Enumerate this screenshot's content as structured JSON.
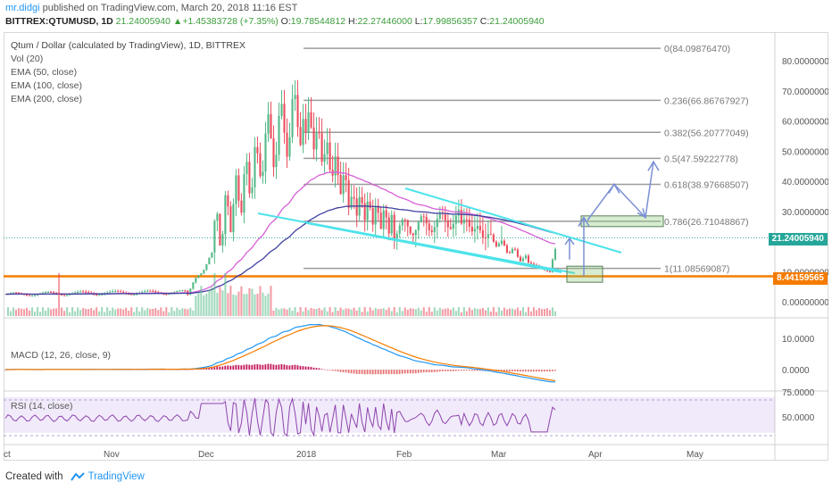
{
  "header": {
    "author": "mr.didgi",
    "published_text": "published on TradingView.com, March 20, 2018 11:16 EST",
    "symbol": "BITTREX:QTUMUSD, 1D",
    "last": "21.24005940",
    "change": "+1.45383728 (+7.35%)",
    "open_label": "O:",
    "open": "19.78544812",
    "high_label": "H:",
    "high": "22.27446000",
    "low_label": "L:",
    "low": "17.99856357",
    "close_label": "C:",
    "close": "21.24005940",
    "up_arrow": "▲"
  },
  "legend": {
    "title": "Qtum / Dollar (calculated by TradingView), 1D, BITTREX",
    "items": [
      "Vol (20)",
      "EMA (50, close)",
      "EMA (100, close)",
      "EMA (200, close)"
    ]
  },
  "fib_levels": [
    {
      "label": "0(84.09876470)",
      "value": 84.0987647
    },
    {
      "label": "0.236(66.86767927)",
      "value": 66.86767927
    },
    {
      "label": "0.382(56.20777049)",
      "value": 56.20777049
    },
    {
      "label": "0.5(47.59222778)",
      "value": 47.59222778
    },
    {
      "label": "0.618(38.97668507)",
      "value": 38.97668507
    },
    {
      "label": "0.786(26.71048867)",
      "value": 26.71048867
    },
    {
      "label": "1(11.08569087)",
      "value": 11.08569087
    }
  ],
  "price_axis": {
    "ticks": [
      "80.00000000",
      "70.00000000",
      "60.00000000",
      "50.00000000",
      "40.00000000",
      "30.00000000",
      "10.00000000",
      "0.00000000"
    ],
    "tick_values": [
      80,
      70,
      60,
      50,
      40,
      30,
      10,
      0
    ],
    "current_price": "21.24005940",
    "support_price": "8.44159565",
    "current_color": "#26a69a",
    "support_color": "#f57c00"
  },
  "macd": {
    "label": "MACD (12, 26, close, 9)",
    "ticks": [
      "10.0000",
      "0.0000"
    ]
  },
  "rsi": {
    "label": "RSI (14, close)",
    "ticks": [
      "75.0000",
      "50.0000"
    ]
  },
  "time_axis": {
    "labels": [
      "ct",
      "Nov",
      "Dec",
      "2018",
      "Feb",
      "Mar",
      "Apr",
      "May"
    ]
  },
  "footer": {
    "created_with": "Created with",
    "brand": "TradingView"
  },
  "colors": {
    "up": "#53b987",
    "down": "#eb4d5c",
    "ema50": "#d65fd6",
    "ema100": "#3f3fa0",
    "trendline": "#4de3ea",
    "fib": "#9b9b9b",
    "support_line": "#f57c00",
    "projection": "#7a8fd6"
  }
}
